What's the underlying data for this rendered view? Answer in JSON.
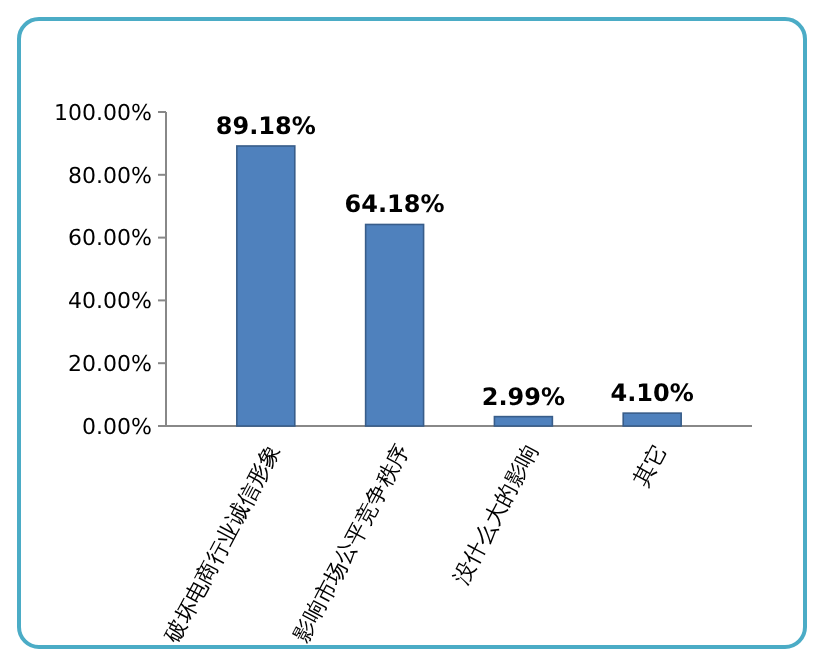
{
  "chart_data": {
    "type": "bar",
    "categories": [
      "破坏电商行业诚信形象",
      "影响市场公平竞争秩序",
      "没什么大的影响",
      "其它"
    ],
    "values": [
      89.18,
      64.18,
      2.99,
      4.1
    ],
    "value_labels": [
      "89.18%",
      "64.18%",
      "2.99%",
      "4.10%"
    ],
    "color": "#4f81bd",
    "ylim": [
      0,
      100
    ],
    "yticks": [
      {
        "value": 0,
        "label": "0.00%"
      },
      {
        "value": 20,
        "label": "20.00%"
      },
      {
        "value": 40,
        "label": "40.00%"
      },
      {
        "value": 60,
        "label": "60.00%"
      },
      {
        "value": 80,
        "label": "80.00%"
      },
      {
        "value": 100,
        "label": "100.00%"
      }
    ],
    "grid": false
  }
}
